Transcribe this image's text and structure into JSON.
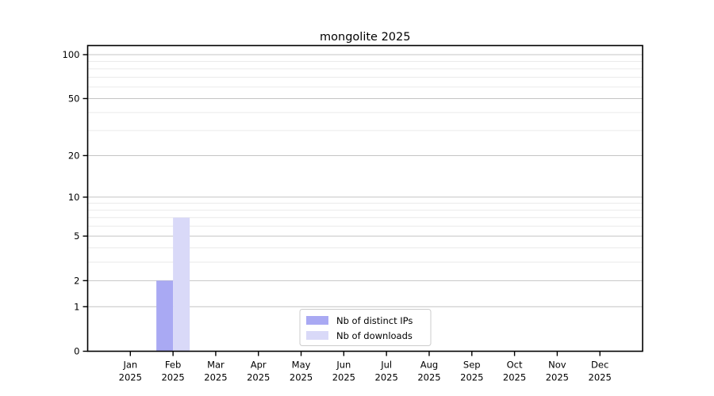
{
  "chart_data": {
    "type": "bar",
    "title": "mongolite 2025",
    "categories": [
      "Jan",
      "Feb",
      "Mar",
      "Apr",
      "May",
      "Jun",
      "Jul",
      "Aug",
      "Sep",
      "Oct",
      "Nov",
      "Dec"
    ],
    "category_year": "2025",
    "series": [
      {
        "name": "Nb of distinct IPs",
        "color": "#a9a9f3",
        "values": [
          0,
          2,
          0,
          0,
          0,
          0,
          0,
          0,
          0,
          0,
          0,
          0
        ]
      },
      {
        "name": "Nb of downloads",
        "color": "#d9d9f8",
        "values": [
          0,
          7,
          0,
          0,
          0,
          0,
          0,
          0,
          0,
          0,
          0,
          0
        ]
      }
    ],
    "xlabel": "",
    "ylabel": "",
    "yscale": "log1p",
    "yticks": [
      0,
      1,
      2,
      5,
      10,
      20,
      50,
      100
    ],
    "minor_gridlines": [
      3,
      4,
      6,
      7,
      8,
      9,
      30,
      40,
      60,
      70,
      80,
      90
    ],
    "ylim": [
      0,
      115
    ],
    "grid": true,
    "legend_position": "lower center",
    "colors": {
      "axis": "#000000",
      "major_grid": "#c4c4c4",
      "minor_grid": "#eaeaea",
      "legend_border": "#cccccc",
      "background": "#ffffff"
    }
  }
}
